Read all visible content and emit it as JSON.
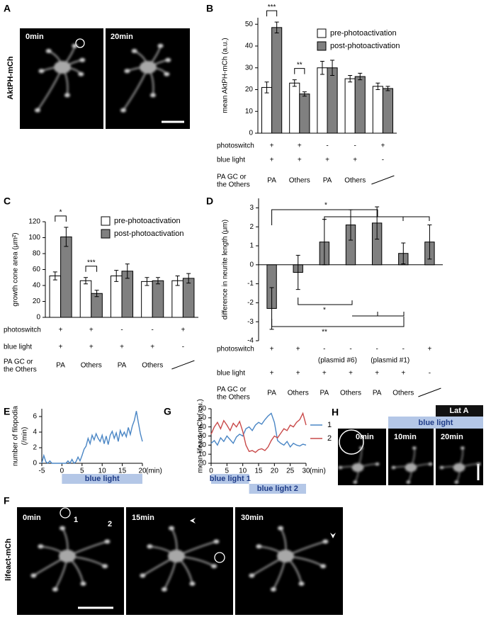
{
  "panel_labels": [
    "A",
    "B",
    "C",
    "D",
    "E",
    "F",
    "G",
    "H"
  ],
  "images": {
    "A": {
      "row_label": "AktPH-mCh",
      "frames": [
        "0min",
        "20min"
      ]
    },
    "F": {
      "row_label": "lifeact-mCh",
      "frames": [
        "0min",
        "15min",
        "30min"
      ],
      "markers": [
        "1",
        "2"
      ]
    },
    "H": {
      "frames": [
        "0min",
        "10min",
        "20min"
      ],
      "bars": [
        "blue light",
        "Lat A"
      ]
    }
  },
  "chart_data": [
    {
      "type": "bar",
      "ylabel": "mean AktPH-mCh (a.u.)",
      "ylim": [
        0,
        53
      ],
      "yticks": [
        0,
        10,
        20,
        30,
        40,
        50
      ],
      "series": [
        {
          "name": "pre-photoactivation",
          "color": "#ffffff",
          "values": [
            21,
            23,
            30,
            25,
            21.5
          ],
          "errors": [
            2.5,
            1.5,
            3,
            1.5,
            1.5
          ]
        },
        {
          "name": "post-photoactivation",
          "color": "#808080",
          "values": [
            48.5,
            18,
            30,
            26,
            20.5
          ],
          "errors": [
            2.5,
            1,
            3.5,
            1.5,
            1
          ]
        }
      ],
      "significance": [
        "***",
        "**",
        null,
        null,
        null
      ],
      "conditions": [
        {
          "label": "photoswitch",
          "values": [
            "+",
            "+",
            "-",
            "-",
            "+"
          ]
        },
        {
          "label": "blue light",
          "values": [
            "+",
            "+",
            "+",
            "+",
            "-"
          ]
        },
        {
          "label": [
            "PA GC or",
            "the Others"
          ],
          "values": [
            "PA",
            "Others",
            "PA",
            "Others",
            null
          ]
        }
      ]
    },
    {
      "type": "bar",
      "ylabel": "growth cone area (μm²)",
      "ylim": [
        0,
        120
      ],
      "yticks": [
        0,
        20,
        40,
        60,
        80,
        100,
        120
      ],
      "series": [
        {
          "name": "pre-photoactivation",
          "color": "#ffffff",
          "values": [
            52,
            46,
            52,
            45,
            46
          ],
          "errors": [
            5,
            4,
            7,
            5,
            6
          ]
        },
        {
          "name": "post-photoactivation",
          "color": "#808080",
          "values": [
            101,
            30,
            58,
            46,
            49
          ],
          "errors": [
            12,
            4,
            9,
            4,
            6
          ]
        }
      ],
      "significance": [
        "*",
        "***",
        null,
        null,
        null
      ],
      "conditions": [
        {
          "label": "photoswitch",
          "values": [
            "+",
            "+",
            "-",
            "-",
            "+"
          ]
        },
        {
          "label": "blue light",
          "values": [
            "+",
            "+",
            "+",
            "+",
            "-"
          ]
        },
        {
          "label": [
            "PA GC or",
            "the Others"
          ],
          "values": [
            "PA",
            "Others",
            "PA",
            "Others",
            null
          ]
        }
      ]
    },
    {
      "type": "bar",
      "ylabel": "difference in neurite length (μm)",
      "ylim": [
        -4,
        3.5
      ],
      "yticks": [
        -4,
        -3,
        -2,
        -1,
        0,
        1,
        2,
        3
      ],
      "color": "#808080",
      "values": [
        -2.3,
        -0.4,
        1.2,
        2.1,
        2.2,
        0.6,
        1.2
      ],
      "errors": [
        1.1,
        0.9,
        1.2,
        0.8,
        0.85,
        0.55,
        0.9
      ],
      "brackets": [
        "*",
        "*",
        "**"
      ],
      "plasmid_notes": [
        "(plasmid #6)",
        "(plasmid #1)"
      ],
      "conditions": [
        {
          "label": "photoswitch",
          "values": [
            "+",
            "+",
            "-",
            "-",
            "-",
            "-",
            "+"
          ]
        },
        {
          "label": "blue light",
          "values": [
            "+",
            "+",
            "+",
            "+",
            "+",
            "+",
            "-"
          ]
        },
        {
          "label": [
            "PA GC or",
            "the Others"
          ],
          "values": [
            "PA",
            "Others",
            "PA",
            "Others",
            "PA",
            "Others",
            null
          ]
        }
      ]
    },
    {
      "type": "line",
      "ylabel": [
        "number of filopodia",
        "(/min)"
      ],
      "x_unit": "(min)",
      "xlim": [
        -5,
        20
      ],
      "xticks": [
        -5,
        0,
        5,
        10,
        15,
        20
      ],
      "ylim": [
        0,
        7
      ],
      "yticks": [
        0,
        2,
        4,
        6
      ],
      "color": "#4a86c5",
      "x": [
        -5,
        -4.5,
        -4,
        -3.5,
        -3,
        -2.5,
        -2,
        -1.5,
        -1,
        -0.5,
        0,
        0.5,
        1,
        1.5,
        2,
        2.5,
        3,
        3.5,
        4,
        4.5,
        5,
        5.5,
        6,
        6.5,
        7,
        7.5,
        8,
        8.5,
        9,
        9.5,
        10,
        10.5,
        11,
        11.5,
        12,
        12.5,
        13,
        13.5,
        14,
        14.5,
        15,
        15.5,
        16,
        16.5,
        17,
        17.5,
        18,
        18.5,
        19,
        19.5,
        20
      ],
      "values": [
        0,
        1.0,
        0.2,
        0,
        0.3,
        0,
        0,
        0,
        0,
        0,
        0,
        0,
        0,
        0.3,
        0,
        0.5,
        0,
        0.2,
        0.8,
        0.3,
        1.0,
        1.8,
        2.2,
        3.2,
        2.5,
        3.6,
        3.0,
        3.8,
        3.2,
        2.8,
        3.6,
        2.5,
        3.5,
        2.4,
        3.6,
        4.1,
        3.2,
        3.9,
        2.8,
        4.2,
        3.5,
        4.0,
        3.4,
        4.6,
        3.7,
        4.8,
        5.5,
        6.7,
        5.2,
        3.8,
        2.8
      ],
      "annotations": [
        {
          "label": "blue light",
          "x": [
            0,
            20
          ]
        }
      ]
    },
    {
      "type": "line",
      "ylabel": "mean lifeact-mCh (a.u.)",
      "x_unit": "(min)",
      "xlim": [
        0,
        30
      ],
      "xticks": [
        0,
        5,
        10,
        15,
        20,
        25,
        30
      ],
      "ylim": [
        0,
        60
      ],
      "yticks": [
        0,
        10,
        20,
        30,
        40,
        50,
        60
      ],
      "x": [
        0,
        1,
        2,
        3,
        4,
        5,
        6,
        7,
        8,
        9,
        10,
        11,
        12,
        13,
        14,
        15,
        16,
        17,
        18,
        19,
        20,
        21,
        22,
        23,
        24,
        25,
        26,
        27,
        28,
        29,
        30
      ],
      "series": [
        {
          "name": "1",
          "color": "#4a86c5",
          "values": [
            22,
            25,
            20,
            28,
            24,
            30,
            26,
            22,
            29,
            32,
            30,
            38,
            40,
            36,
            42,
            45,
            43,
            48,
            52,
            55,
            45,
            25,
            22,
            20,
            24,
            18,
            22,
            20,
            19,
            21,
            20
          ]
        },
        {
          "name": "2",
          "color": "#c94a4a",
          "values": [
            32,
            40,
            45,
            38,
            47,
            42,
            36,
            44,
            40,
            46,
            35,
            20,
            13,
            14,
            12,
            15,
            16,
            14,
            18,
            25,
            30,
            28,
            33,
            38,
            36,
            42,
            40,
            45,
            48,
            55,
            42
          ]
        }
      ],
      "annotations": [
        {
          "label": "blue light 1",
          "x": [
            0,
            12
          ]
        },
        {
          "label": "blue light 2",
          "x": [
            12,
            30
          ]
        }
      ]
    }
  ]
}
